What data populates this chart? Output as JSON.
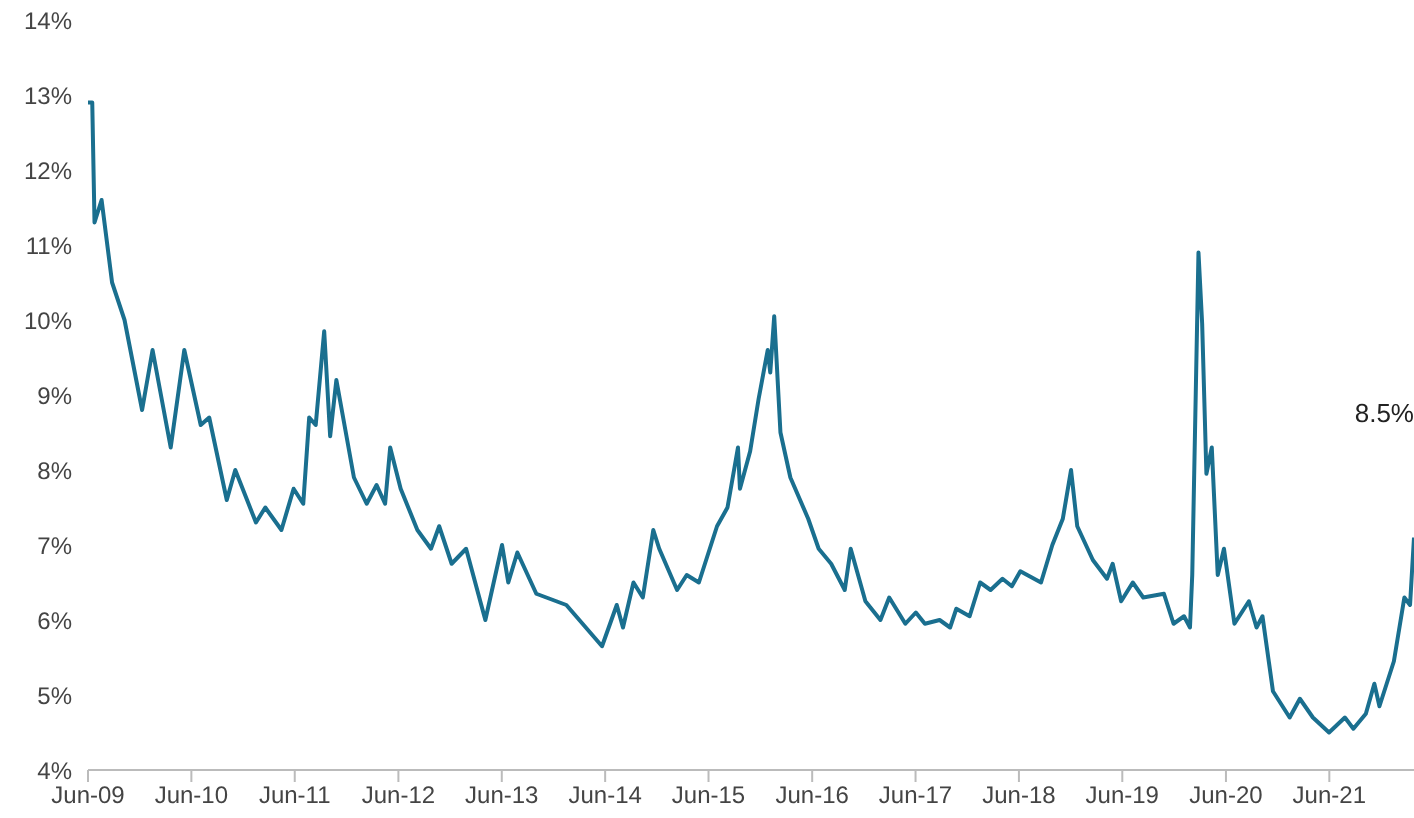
{
  "chart_data": {
    "type": "line",
    "x": [
      "2009-06-01",
      "2009-06-16",
      "2009-06-24",
      "2009-07-19",
      "2009-08-25",
      "2009-10-08",
      "2009-12-09",
      "2010-01-15",
      "2010-03-20",
      "2010-05-07",
      "2010-07-04",
      "2010-08-03",
      "2010-10-04",
      "2010-11-03",
      "2011-01-15",
      "2011-02-17",
      "2011-04-15",
      "2011-05-28",
      "2011-07-01",
      "2011-07-22",
      "2011-08-14",
      "2011-09-13",
      "2011-10-04",
      "2011-10-26",
      "2011-12-27",
      "2012-02-10",
      "2012-03-16",
      "2012-04-15",
      "2012-05-03",
      "2012-06-09",
      "2012-08-07",
      "2012-09-24",
      "2012-10-23",
      "2012-12-06",
      "2013-01-26",
      "2013-04-04",
      "2013-06-02",
      "2013-06-24",
      "2013-07-26",
      "2013-10-01",
      "2014-01-15",
      "2014-05-21",
      "2014-07-12",
      "2014-08-03",
      "2014-09-09",
      "2014-10-12",
      "2014-11-18",
      "2014-12-09",
      "2015-02-10",
      "2015-03-16",
      "2015-04-28",
      "2015-07-01",
      "2015-08-07",
      "2015-09-13",
      "2015-09-20",
      "2015-10-26",
      "2015-11-25",
      "2015-12-27",
      "2016-01-05",
      "2016-01-19",
      "2016-02-10",
      "2016-03-16",
      "2016-05-18",
      "2016-06-24",
      "2016-08-07",
      "2016-09-24",
      "2016-10-15",
      "2016-12-06",
      "2017-01-28",
      "2017-02-28",
      "2017-04-26",
      "2017-06-02",
      "2017-07-04",
      "2017-08-25",
      "2017-10-01",
      "2017-10-23",
      "2017-12-09",
      "2018-01-15",
      "2018-02-21",
      "2018-04-04",
      "2018-05-07",
      "2018-06-06",
      "2018-08-18",
      "2018-09-27",
      "2018-11-03",
      "2018-12-02",
      "2018-12-24",
      "2019-02-17",
      "2019-04-08",
      "2019-04-28",
      "2019-05-28",
      "2019-07-08",
      "2019-08-14",
      "2019-10-26",
      "2019-11-29",
      "2020-01-05",
      "2020-01-26",
      "2020-02-03",
      "2020-02-25",
      "2020-03-09",
      "2020-03-24",
      "2020-04-12",
      "2020-05-03",
      "2020-05-25",
      "2020-07-01",
      "2020-08-21",
      "2020-09-17",
      "2020-10-08",
      "2020-11-14",
      "2021-01-12",
      "2021-02-17",
      "2021-04-04",
      "2021-05-31",
      "2021-07-26",
      "2021-08-25",
      "2021-10-08",
      "2021-11-07",
      "2021-11-25",
      "2022-01-15",
      "2022-02-21",
      "2022-03-13",
      "2022-03-27"
    ],
    "series": [
      {
        "color": "#1a6f8f",
        "values": [
          12.9,
          12.9,
          11.3,
          11.6,
          10.5,
          10.0,
          8.8,
          9.6,
          8.3,
          9.6,
          8.6,
          8.7,
          7.6,
          8.0,
          7.3,
          7.5,
          7.2,
          7.75,
          7.55,
          8.7,
          8.6,
          9.85,
          8.45,
          9.2,
          7.9,
          7.55,
          7.8,
          7.55,
          8.3,
          7.75,
          7.2,
          6.95,
          7.25,
          6.75,
          6.95,
          6.0,
          7.0,
          6.5,
          6.9,
          6.35,
          6.2,
          5.65,
          6.2,
          5.9,
          6.5,
          6.3,
          7.2,
          6.95,
          6.4,
          6.6,
          6.5,
          7.25,
          7.5,
          8.3,
          7.75,
          8.25,
          8.95,
          9.6,
          9.3,
          10.05,
          8.5,
          7.9,
          7.35,
          6.95,
          6.75,
          6.4,
          6.95,
          6.25,
          6.0,
          6.3,
          5.95,
          6.1,
          5.95,
          6.0,
          5.9,
          6.15,
          6.05,
          6.5,
          6.4,
          6.55,
          6.45,
          6.65,
          6.5,
          7.0,
          7.35,
          8.0,
          7.25,
          6.8,
          6.55,
          6.75,
          6.25,
          6.5,
          6.3,
          6.35,
          5.95,
          6.05,
          5.9,
          6.6,
          10.9,
          9.95,
          7.95,
          8.3,
          6.6,
          6.95,
          5.95,
          6.25,
          5.9,
          6.05,
          5.05,
          4.7,
          4.95,
          4.7,
          4.5,
          4.7,
          4.55,
          4.75,
          5.15,
          4.85,
          5.45,
          6.3,
          6.2,
          7.1
        ]
      }
    ],
    "xlim": [
      "2009-06-01",
      "2022-03-27"
    ],
    "xticks": [
      {
        "value": "2009-06-01",
        "label": "Jun-09"
      },
      {
        "value": "2010-06-01",
        "label": "Jun-10"
      },
      {
        "value": "2011-06-01",
        "label": "Jun-11"
      },
      {
        "value": "2012-06-01",
        "label": "Jun-12"
      },
      {
        "value": "2013-06-01",
        "label": "Jun-13"
      },
      {
        "value": "2014-06-01",
        "label": "Jun-14"
      },
      {
        "value": "2015-06-01",
        "label": "Jun-15"
      },
      {
        "value": "2016-06-01",
        "label": "Jun-16"
      },
      {
        "value": "2017-06-01",
        "label": "Jun-17"
      },
      {
        "value": "2018-06-01",
        "label": "Jun-18"
      },
      {
        "value": "2019-06-01",
        "label": "Jun-19"
      },
      {
        "value": "2020-06-01",
        "label": "Jun-20"
      },
      {
        "value": "2021-06-01",
        "label": "Jun-21"
      }
    ],
    "ylim": [
      4,
      14
    ],
    "yticks": [
      {
        "value": 4,
        "label": "4%"
      },
      {
        "value": 5,
        "label": "5%"
      },
      {
        "value": 6,
        "label": "6%"
      },
      {
        "value": 7,
        "label": "7%"
      },
      {
        "value": 8,
        "label": "8%"
      },
      {
        "value": 9,
        "label": "9%"
      },
      {
        "value": 10,
        "label": "10%"
      },
      {
        "value": 11,
        "label": "11%"
      },
      {
        "value": 12,
        "label": "12%"
      },
      {
        "value": 13,
        "label": "13%"
      },
      {
        "value": 14,
        "label": "14%"
      }
    ],
    "annotations": [
      "8.5%"
    ],
    "grid": false,
    "legend": false,
    "marker": "none",
    "line_style": "solid"
  }
}
